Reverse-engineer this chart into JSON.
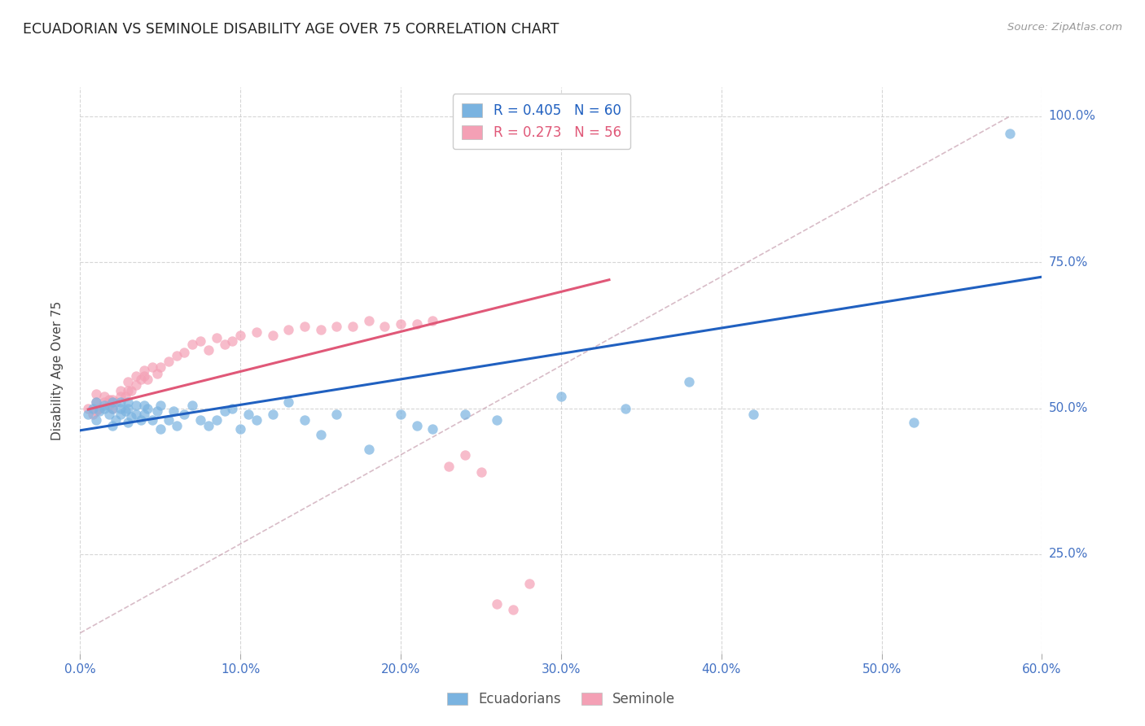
{
  "title": "ECUADORIAN VS SEMINOLE DISABILITY AGE OVER 75 CORRELATION CHART",
  "source": "Source: ZipAtlas.com",
  "ylabel_label": "Disability Age Over 75",
  "xmin": 0.0,
  "xmax": 0.6,
  "ymin": 0.08,
  "ymax": 1.05,
  "blue_R": 0.405,
  "blue_N": 60,
  "pink_R": 0.273,
  "pink_N": 56,
  "blue_color": "#7ab3e0",
  "pink_color": "#f4a0b5",
  "blue_line_color": "#2060c0",
  "pink_line_color": "#e05878",
  "dashed_line_color": "#c8a0b0",
  "title_color": "#222222",
  "axis_label_color": "#4472c4",
  "grid_color": "#cccccc",
  "blue_scatter_x": [
    0.005,
    0.008,
    0.01,
    0.01,
    0.012,
    0.015,
    0.015,
    0.018,
    0.02,
    0.02,
    0.02,
    0.022,
    0.025,
    0.025,
    0.025,
    0.028,
    0.03,
    0.03,
    0.03,
    0.032,
    0.035,
    0.035,
    0.038,
    0.04,
    0.04,
    0.042,
    0.045,
    0.048,
    0.05,
    0.05,
    0.055,
    0.058,
    0.06,
    0.065,
    0.07,
    0.075,
    0.08,
    0.085,
    0.09,
    0.095,
    0.1,
    0.105,
    0.11,
    0.12,
    0.13,
    0.14,
    0.15,
    0.16,
    0.18,
    0.2,
    0.21,
    0.22,
    0.24,
    0.26,
    0.3,
    0.34,
    0.38,
    0.42,
    0.52,
    0.58
  ],
  "blue_scatter_y": [
    0.49,
    0.5,
    0.48,
    0.51,
    0.495,
    0.5,
    0.505,
    0.49,
    0.47,
    0.5,
    0.51,
    0.48,
    0.49,
    0.5,
    0.51,
    0.495,
    0.475,
    0.5,
    0.51,
    0.485,
    0.49,
    0.505,
    0.48,
    0.49,
    0.505,
    0.5,
    0.48,
    0.495,
    0.465,
    0.505,
    0.48,
    0.495,
    0.47,
    0.49,
    0.505,
    0.48,
    0.47,
    0.48,
    0.495,
    0.5,
    0.465,
    0.49,
    0.48,
    0.49,
    0.51,
    0.48,
    0.455,
    0.49,
    0.43,
    0.49,
    0.47,
    0.465,
    0.49,
    0.48,
    0.52,
    0.5,
    0.545,
    0.49,
    0.475,
    0.97
  ],
  "pink_scatter_x": [
    0.005,
    0.008,
    0.01,
    0.01,
    0.01,
    0.012,
    0.015,
    0.015,
    0.018,
    0.018,
    0.02,
    0.02,
    0.022,
    0.025,
    0.025,
    0.028,
    0.03,
    0.03,
    0.032,
    0.035,
    0.035,
    0.038,
    0.04,
    0.04,
    0.042,
    0.045,
    0.048,
    0.05,
    0.055,
    0.06,
    0.065,
    0.07,
    0.075,
    0.08,
    0.085,
    0.09,
    0.095,
    0.1,
    0.11,
    0.12,
    0.13,
    0.14,
    0.15,
    0.16,
    0.17,
    0.18,
    0.19,
    0.2,
    0.21,
    0.22,
    0.23,
    0.24,
    0.25,
    0.26,
    0.27,
    0.28
  ],
  "pink_scatter_y": [
    0.5,
    0.49,
    0.495,
    0.51,
    0.525,
    0.5,
    0.51,
    0.52,
    0.505,
    0.515,
    0.5,
    0.515,
    0.51,
    0.52,
    0.53,
    0.52,
    0.53,
    0.545,
    0.53,
    0.54,
    0.555,
    0.55,
    0.555,
    0.565,
    0.55,
    0.57,
    0.56,
    0.57,
    0.58,
    0.59,
    0.595,
    0.61,
    0.615,
    0.6,
    0.62,
    0.61,
    0.615,
    0.625,
    0.63,
    0.625,
    0.635,
    0.64,
    0.635,
    0.64,
    0.64,
    0.65,
    0.64,
    0.645,
    0.645,
    0.65,
    0.4,
    0.42,
    0.39,
    0.165,
    0.155,
    0.2
  ],
  "blue_line_x": [
    0.0,
    0.6
  ],
  "blue_line_y": [
    0.462,
    0.725
  ],
  "pink_line_x": [
    0.005,
    0.33
  ],
  "pink_line_y": [
    0.498,
    0.72
  ],
  "dashed_line_x": [
    0.0,
    0.58
  ],
  "dashed_line_y": [
    0.115,
    1.0
  ]
}
